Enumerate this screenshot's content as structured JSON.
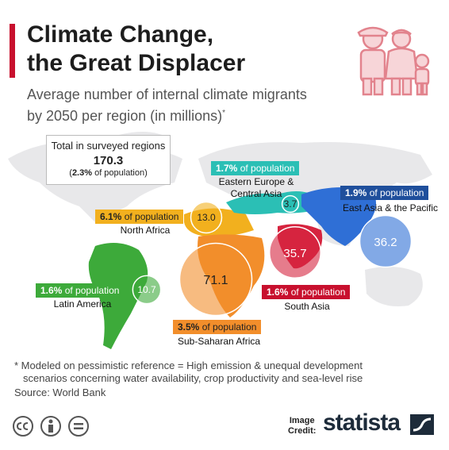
{
  "header": {
    "title_line1": "Climate Change,",
    "title_line2": "the Great Displacer",
    "subtitle_line1": "Average number of internal climate migrants",
    "subtitle_line2": "by 2050 per region (in millions)",
    "subtitle_mark": "*"
  },
  "total": {
    "label": "Total in surveyed regions",
    "value": "170.3",
    "share_open": "(",
    "share_value": "2.3%",
    "share_rest": " of population)"
  },
  "chart_data": {
    "type": "bubble",
    "title": "Climate Change, the Great Displacer",
    "subtitle": "Average number of internal climate migrants by 2050 per region (in millions)*",
    "unit": "millions",
    "total": 170.3,
    "total_share_of_population": 2.3,
    "regions": [
      {
        "name": "Sub-Saharan Africa",
        "value": 71.1,
        "value_label": "71.1",
        "share": 3.5,
        "share_label": "3.5%",
        "color": "#f28e2b"
      },
      {
        "name": "East Asia & the Pacific",
        "value": 36.2,
        "value_label": "36.2",
        "share": 1.9,
        "share_label": "1.9%",
        "color": "#2f6fd6"
      },
      {
        "name": "South Asia",
        "value": 35.7,
        "value_label": "35.7",
        "share": 1.6,
        "share_label": "1.6%",
        "color": "#d6243f"
      },
      {
        "name": "North Africa",
        "value": 13.0,
        "value_label": "13.0",
        "share": 6.1,
        "share_label": "6.1%",
        "color": "#f2b01e"
      },
      {
        "name": "Latin America",
        "value": 10.7,
        "value_label": "10.7",
        "share": 1.6,
        "share_label": "1.6%",
        "color": "#3daa3a"
      },
      {
        "name": "Eastern Europe & Central Asia",
        "value": 3.7,
        "value_label": "3.7",
        "share": 1.7,
        "share_label": "1.7%",
        "color": "#2bbfb5"
      }
    ],
    "pct_suffix": " of population"
  },
  "region_names": {
    "latin_america": "Latin America",
    "north_africa": "North Africa",
    "eastern_europe_line1": "Eastern Europe &",
    "eastern_europe_line2": "Central Asia",
    "east_asia": "East Asia & the Pacific",
    "south_asia": "South Asia",
    "sub_saharan": "Sub-Saharan Africa"
  },
  "footer": {
    "note_line1": "* Modeled on pessimistic reference = High emission & unequal development",
    "note_line2": "scenarios concerning water availability, crop productivity and sea-level rise",
    "source": "Source: World Bank",
    "credit_line1": "Image",
    "credit_line2": "Credit:",
    "brand": "statista"
  },
  "icons": [
    "family-icon",
    "creative-commons-icon",
    "attribution-icon",
    "no-derivatives-icon",
    "statista-logo-icon"
  ]
}
